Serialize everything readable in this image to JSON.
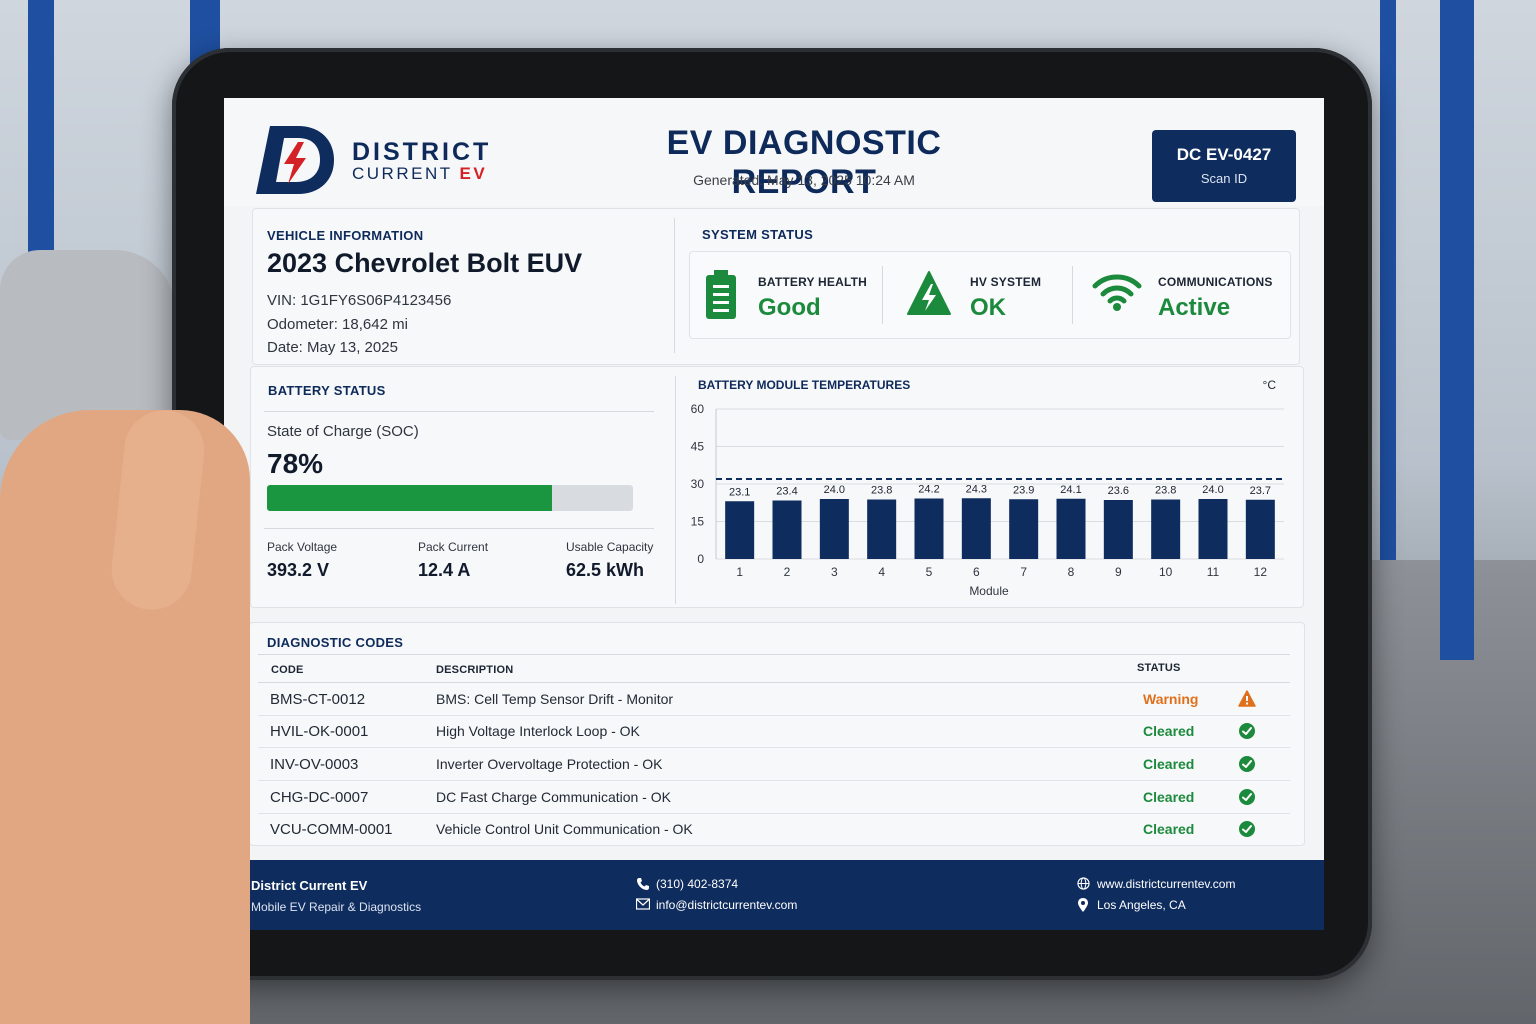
{
  "brand": {
    "name_line1": "DISTRICT",
    "name_line2_prefix": "CURRENT",
    "name_line2_accent": "EV"
  },
  "header": {
    "title": "EV DIAGNOSTIC REPORT",
    "generated": "Generated: May 13, 2025 10:24 AM",
    "scan_id": "DC EV-0427",
    "scan_label": "Scan ID"
  },
  "vehicle": {
    "section_label": "VEHICLE INFORMATION",
    "name": "2023 Chevrolet Bolt EUV",
    "vin": "VIN: 1G1FY6S06P4123456",
    "odometer": "Odometer: 18,642 mi",
    "date": "Date: May 13, 2025"
  },
  "system_status": {
    "section_label": "SYSTEM STATUS",
    "items": [
      {
        "label": "BATTERY HEALTH",
        "value": "Good",
        "icon": "battery-icon"
      },
      {
        "label": "HV SYSTEM",
        "value": "OK",
        "icon": "high-voltage-warning-icon"
      },
      {
        "label": "COMMUNICATIONS",
        "value": "Active",
        "icon": "wifi-icon"
      }
    ],
    "ok_color": "#1c8a3c"
  },
  "battery": {
    "section_label": "BATTERY STATUS",
    "soc_label": "State of Charge (SOC)",
    "soc_value": "78%",
    "soc_fraction": 0.78,
    "metrics": [
      {
        "label": "Pack Voltage",
        "value": "393.2 V"
      },
      {
        "label": "Pack Current",
        "value": "12.4 A"
      },
      {
        "label": "Usable Capacity",
        "value": "62.5 kWh"
      }
    ]
  },
  "chart_data": {
    "type": "bar",
    "title": "BATTERY MODULE TEMPERATURES",
    "unit_label": "°C",
    "xlabel": "Module",
    "ylabel": "",
    "categories": [
      "1",
      "2",
      "3",
      "4",
      "5",
      "6",
      "7",
      "8",
      "9",
      "10",
      "11",
      "12"
    ],
    "values": [
      23.1,
      23.4,
      24.0,
      23.8,
      24.2,
      24.3,
      23.9,
      24.1,
      23.6,
      23.8,
      24.0,
      23.7
    ],
    "value_labels": [
      "23.1",
      "23.4",
      "24.0",
      "23.8",
      "24.2",
      "24.3",
      "23.9",
      "24.1",
      "23.6",
      "23.8",
      "24.0",
      "23.7"
    ],
    "yticks": [
      "0",
      "15",
      "30",
      "45",
      "60"
    ],
    "ylim": [
      0,
      60
    ],
    "reference_line": 32,
    "grid": true,
    "bar_color": "#0f2c5e"
  },
  "diagnostic_codes": {
    "section_label": "DIAGNOSTIC CODES",
    "headers": {
      "code": "CODE",
      "description": "DESCRIPTION",
      "status": "STATUS"
    },
    "rows": [
      {
        "code": "BMS-CT-0012",
        "description": "BMS: Cell Temp Sensor Drift - Monitor",
        "status": "Warning",
        "icon": "warning-triangle-icon"
      },
      {
        "code": "HVIL-OK-0001",
        "description": "High Voltage Interlock Loop - OK",
        "status": "Cleared",
        "icon": "check-circle-icon"
      },
      {
        "code": "INV-OV-0003",
        "description": "Inverter Overvoltage Protection - OK",
        "status": "Cleared",
        "icon": "check-circle-icon"
      },
      {
        "code": "CHG-DC-0007",
        "description": "DC Fast Charge Communication - OK",
        "status": "Cleared",
        "icon": "check-circle-icon"
      },
      {
        "code": "VCU-COMM-0001",
        "description": "Vehicle Control Unit Communication - OK",
        "status": "Cleared",
        "icon": "check-circle-icon"
      }
    ],
    "warning_color": "#e0711c",
    "cleared_color": "#1c8a3c"
  },
  "footer": {
    "company": "District Current EV",
    "tagline": "Mobile EV Repair & Diagnostics",
    "phone": "(310) 402-8374",
    "email": "info@districtcurrentev.com",
    "website": "www.districtcurrentev.com",
    "location": "Los Angeles, CA"
  }
}
